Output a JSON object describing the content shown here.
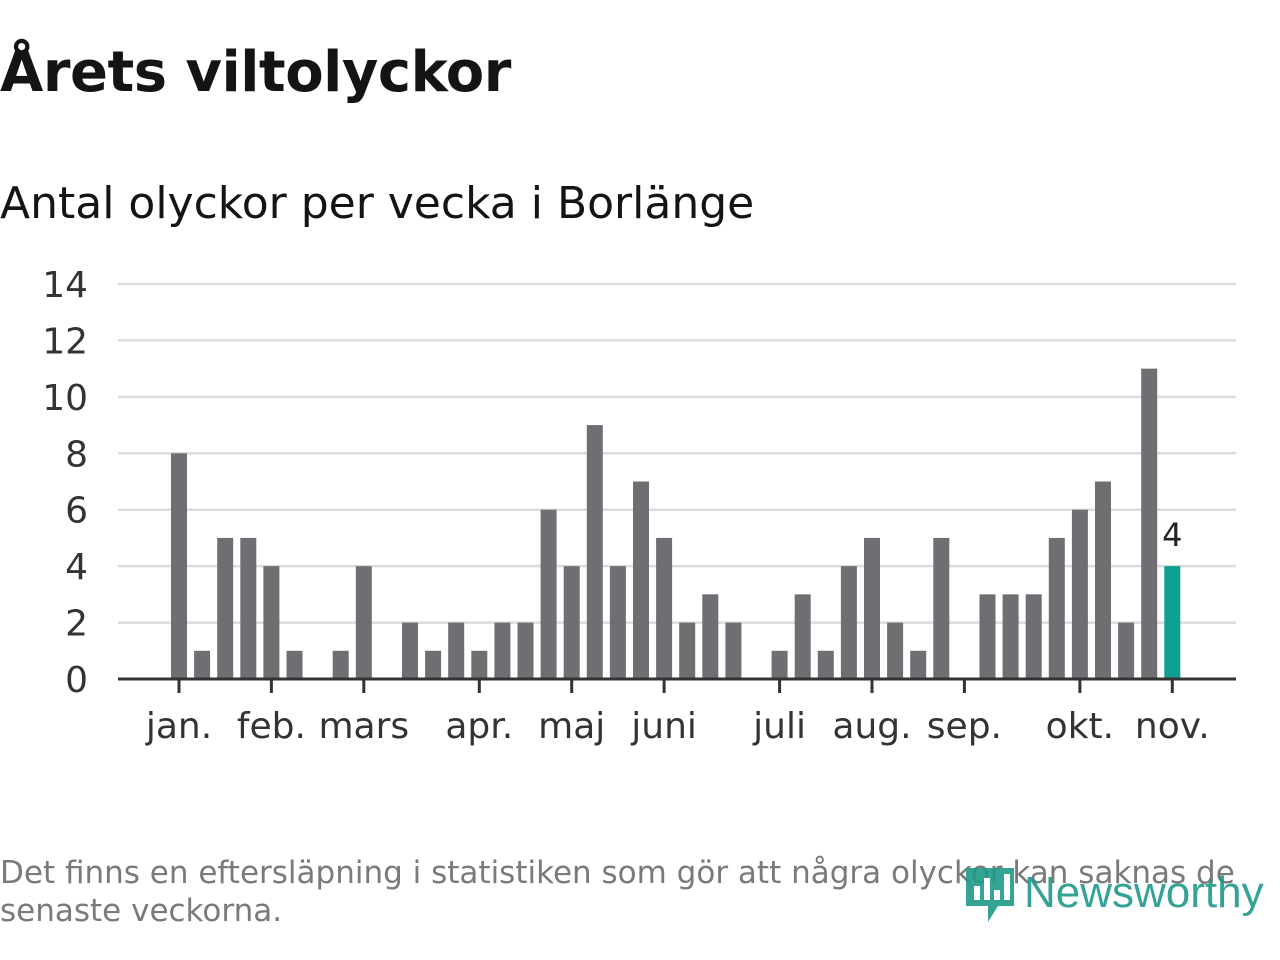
{
  "title": "Årets viltolyckor",
  "subtitle": "Antal olyckor per vecka i Borlänge",
  "footnote": "Det finns en eftersläpning i statistiken som gör att några olyckor kan saknas de senaste veckorna.",
  "logo_text": "Newsworthy",
  "colors": {
    "bar": "#6f6e73",
    "highlight": "#0e9f94",
    "grid": "#dcdcdc",
    "axis": "#333333",
    "text": "#333333",
    "logo": "#1f9a8a"
  },
  "chart_data": {
    "type": "bar",
    "values": [
      8,
      1,
      5,
      5,
      4,
      1,
      0,
      1,
      4,
      0,
      2,
      1,
      2,
      1,
      2,
      2,
      6,
      4,
      9,
      4,
      7,
      5,
      2,
      3,
      2,
      0,
      1,
      3,
      1,
      4,
      5,
      2,
      1,
      5,
      0,
      3,
      3,
      3,
      5,
      6,
      7,
      2,
      11,
      4
    ],
    "highlight_index": 43,
    "highlight_label": "4",
    "yticks": [
      0,
      2,
      4,
      6,
      8,
      10,
      12,
      14
    ],
    "ylim": [
      0,
      14
    ],
    "grid": true,
    "month_labels": [
      {
        "label": "jan.",
        "week_index": 0
      },
      {
        "label": "feb.",
        "week_index": 4
      },
      {
        "label": "mars",
        "week_index": 8
      },
      {
        "label": "apr.",
        "week_index": 13
      },
      {
        "label": "maj",
        "week_index": 17
      },
      {
        "label": "juni",
        "week_index": 21
      },
      {
        "label": "juli",
        "week_index": 26
      },
      {
        "label": "aug.",
        "week_index": 30
      },
      {
        "label": "sep.",
        "week_index": 34
      },
      {
        "label": "okt.",
        "week_index": 39
      },
      {
        "label": "nov.",
        "week_index": 43
      }
    ]
  }
}
